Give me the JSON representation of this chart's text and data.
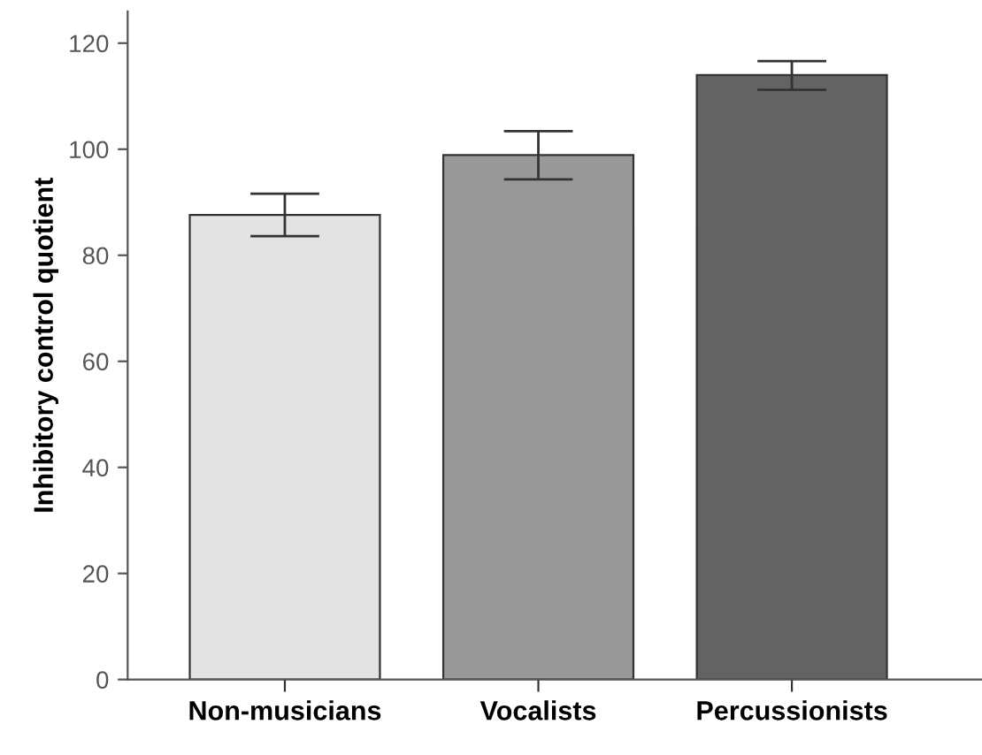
{
  "chart_data": {
    "type": "bar",
    "ylabel": "Inhibitory control quotient",
    "categories": [
      "Non-musicians",
      "Vocalists",
      "Percussionists"
    ],
    "values": [
      87.6,
      98.9,
      114.0
    ],
    "errors": [
      [
        83.6,
        91.6
      ],
      [
        94.3,
        103.4
      ],
      [
        111.2,
        116.6
      ]
    ],
    "colors": [
      "#e3e3e3",
      "#999999",
      "#636363"
    ],
    "ylim": [
      0,
      126
    ],
    "yticks": [
      0,
      20,
      40,
      60,
      80,
      100,
      120
    ],
    "grid": false,
    "legend": false
  }
}
